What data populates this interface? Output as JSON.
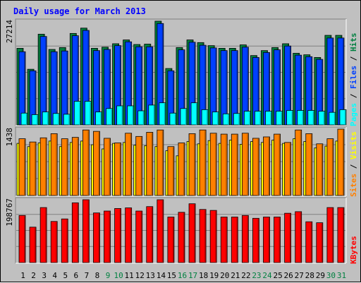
{
  "chart_data": {
    "type": "bar",
    "title": "Daily usage for March 2013",
    "days": [
      "1",
      "2",
      "3",
      "4",
      "5",
      "6",
      "7",
      "8",
      "9",
      "10",
      "11",
      "12",
      "13",
      "14",
      "15",
      "16",
      "17",
      "18",
      "19",
      "20",
      "21",
      "22",
      "23",
      "24",
      "25",
      "26",
      "27",
      "28",
      "29",
      "30",
      "31"
    ],
    "weekend_days": [
      "9",
      "10",
      "16",
      "17",
      "23",
      "24",
      "30",
      "31"
    ],
    "panels": [
      {
        "id": "pages-files-hits",
        "max_label": "27214",
        "ymax": 27214,
        "legend": [
          {
            "text": "Pages",
            "color": "#00ffff"
          },
          {
            "text": " / ",
            "color": "#000000"
          },
          {
            "text": "Files",
            "color": "#0040ff"
          },
          {
            "text": " / ",
            "color": "#000000"
          },
          {
            "text": "Hits",
            "color": "#008040"
          }
        ],
        "series": [
          {
            "name": "Hits",
            "color": "#008040",
            "offset": 0,
            "values": [
              20100,
              14600,
              23800,
              19800,
              20300,
              24000,
              25400,
              20100,
              20400,
              21300,
              22300,
              21100,
              21200,
              27214,
              14800,
              20300,
              22300,
              21600,
              20800,
              20100,
              20100,
              21000,
              18200,
              19500,
              20300,
              21300,
              18800,
              18400,
              17700,
              23500,
              23500
            ]
          },
          {
            "name": "Files",
            "color": "#0040ff",
            "offset": 3,
            "values": [
              19200,
              14200,
              23200,
              19200,
              19400,
              23400,
              24800,
              19500,
              19800,
              20800,
              21800,
              20500,
              20500,
              26600,
              14200,
              19700,
              21700,
              20900,
              20200,
              19500,
              19500,
              20400,
              17700,
              19000,
              19700,
              20700,
              18300,
              17900,
              17200,
              22800,
              22800
            ]
          },
          {
            "name": "Pages",
            "color": "#00ffff",
            "offset": 6,
            "values": [
              3100,
              2700,
              3400,
              3000,
              2800,
              6200,
              6200,
              3400,
              4300,
              5000,
              5000,
              3700,
              5200,
              5800,
              3100,
              4300,
              5800,
              4000,
              3400,
              2900,
              3000,
              3600,
              3600,
              3600,
              3600,
              3800,
              3800,
              3800,
              3600,
              3300,
              4000
            ]
          }
        ]
      },
      {
        "id": "sites-visits",
        "max_label": "1438",
        "ymax": 1438,
        "legend": [
          {
            "text": "Sites",
            "color": "#ff8000"
          },
          {
            "text": " / ",
            "color": "#000000"
          },
          {
            "text": "Visits",
            "color": "#ffff00"
          }
        ],
        "series": [
          {
            "name": "Visits",
            "color": "#ffff00",
            "offset": 0,
            "values": [
              1130,
              1060,
              1140,
              1180,
              1060,
              1150,
              1180,
              1100,
              1010,
              1130,
              1150,
              1090,
              1080,
              1060,
              970,
              860,
              1170,
              1120,
              1190,
              1130,
              1200,
              1110,
              1170,
              1150,
              1200,
              1130,
              1230,
              1170,
              1030,
              1070,
              1180
            ]
          },
          {
            "name": "Sites",
            "color": "#ff8000",
            "offset": 3,
            "values": [
              1230,
              1160,
              1250,
              1340,
              1230,
              1260,
              1420,
              1390,
              1240,
              1140,
              1350,
              1280,
              1370,
              1420,
              1060,
              1140,
              1340,
              1420,
              1350,
              1330,
              1330,
              1350,
              1240,
              1270,
              1330,
              1150,
              1420,
              1340,
              1120,
              1230,
              1438
            ]
          }
        ]
      },
      {
        "id": "kbytes",
        "max_label": "198767",
        "ymax": 198767,
        "legend": [
          {
            "text": "KBytes",
            "color": "#ff0000"
          }
        ],
        "series": [
          {
            "name": "KBytes",
            "color": "#ff0000",
            "offset": 3,
            "values": [
              149000,
              112000,
              174000,
              130000,
              138000,
              189000,
              198767,
              157000,
              163000,
              171000,
              173000,
              163000,
              177000,
              198767,
              144000,
              159000,
              186000,
              168000,
              165000,
              144000,
              144000,
              149000,
              140000,
              144000,
              144000,
              156000,
              161000,
              129000,
              126000,
              174000,
              174000
            ]
          }
        ]
      }
    ]
  }
}
